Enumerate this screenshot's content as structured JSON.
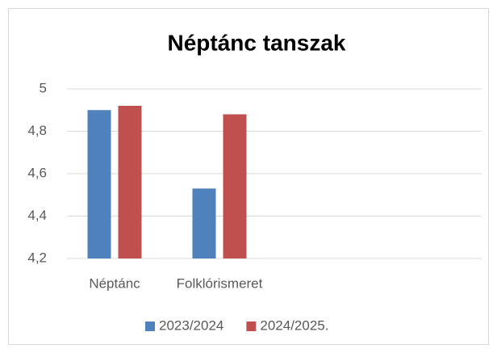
{
  "chart_data": {
    "type": "bar",
    "title": "Néptánc tanszak",
    "categories": [
      "Néptánc",
      "Folklórismeret",
      null,
      null
    ],
    "series": [
      {
        "name": "2023/2024",
        "color": "#4f81bd",
        "values": [
          4.9,
          4.53,
          null,
          null
        ]
      },
      {
        "name": "2024/2025.",
        "color": "#c0504d",
        "values": [
          4.92,
          4.88,
          null,
          null
        ]
      }
    ],
    "ylim": [
      4.2,
      5
    ],
    "yticks": [
      {
        "value": 4.2,
        "label": "4,2"
      },
      {
        "value": 4.4,
        "label": "4,4"
      },
      {
        "value": 4.6,
        "label": "4,6"
      },
      {
        "value": 4.8,
        "label": "4,8"
      },
      5
    ],
    "grid": true,
    "legend": "bottom"
  }
}
